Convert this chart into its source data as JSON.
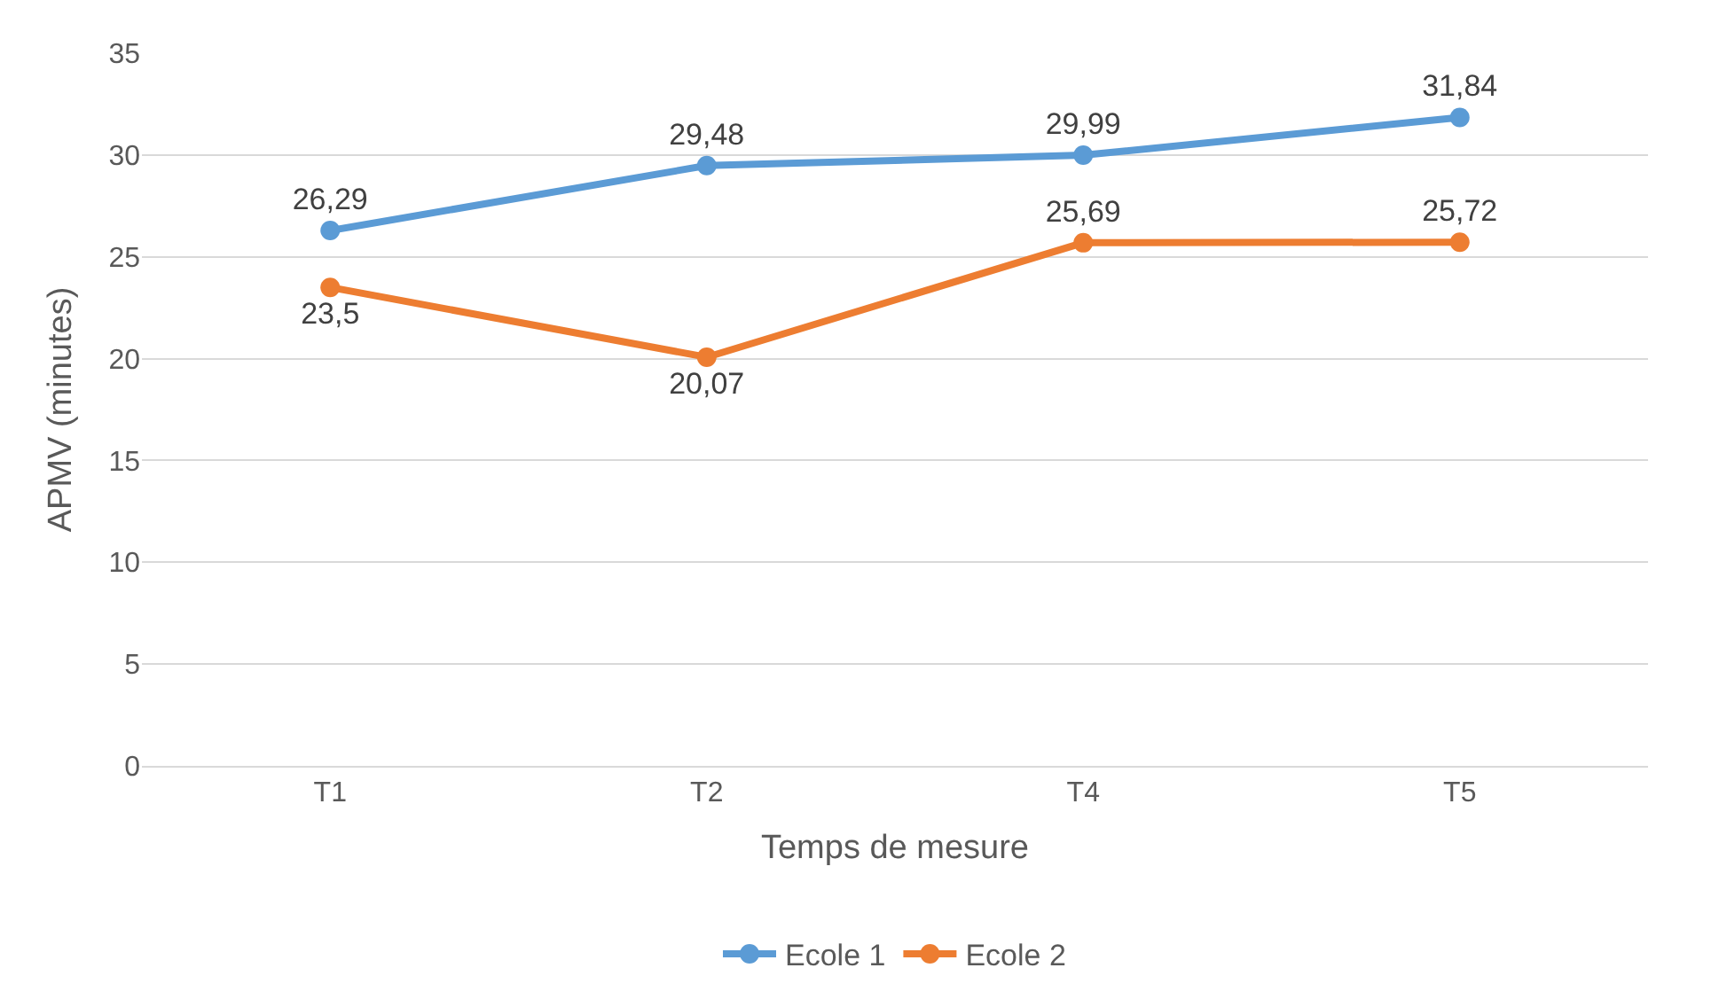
{
  "chart_data": {
    "type": "line",
    "xlabel": "Temps de mesure",
    "ylabel": "APMV (minutes)",
    "categories": [
      "T1",
      "T2",
      "T4",
      "T5"
    ],
    "series": [
      {
        "name": "Ecole 1",
        "color": "#5b9bd5",
        "values": [
          26.29,
          29.48,
          29.99,
          31.84
        ],
        "value_labels": [
          "26,29",
          "29,48",
          "29,99",
          "31,84"
        ]
      },
      {
        "name": "Ecole 2",
        "color": "#ed7d31",
        "values": [
          23.5,
          20.07,
          25.69,
          25.72
        ],
        "value_labels": [
          "23,5",
          "20,07",
          "25,69",
          "25,72"
        ]
      }
    ],
    "ylim": [
      0,
      35
    ],
    "yticks": [
      0,
      5,
      10,
      15,
      20,
      25,
      30,
      35
    ],
    "grid": "y",
    "legend": "bottom",
    "marker": "circle",
    "line_style": "solid"
  }
}
